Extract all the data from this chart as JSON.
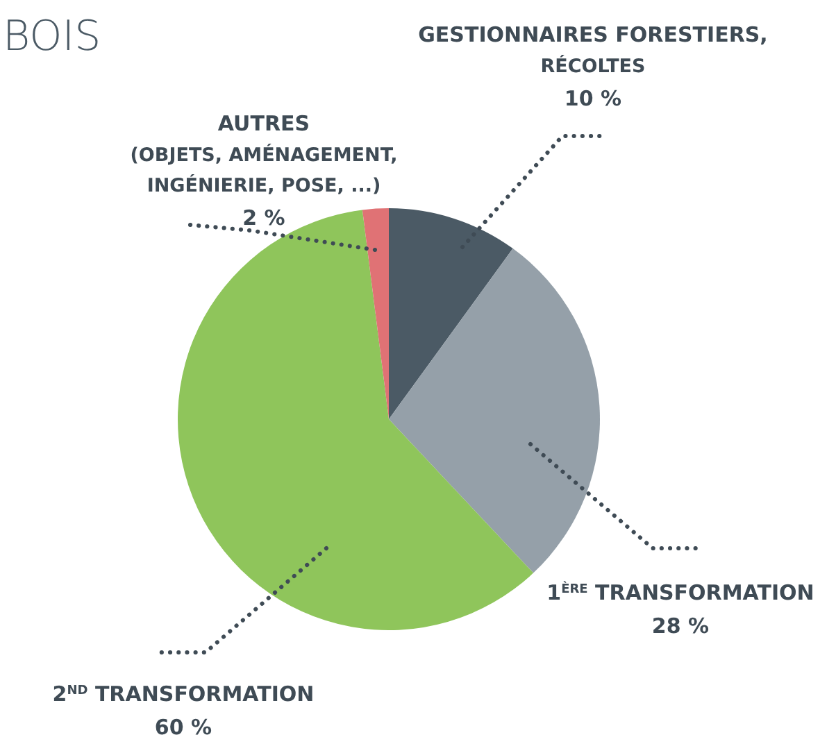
{
  "chart_data": {
    "type": "pie",
    "title": "BOIS",
    "categories": [
      "GESTIONNAIRES FORESTIERS,\nRÉCOLTES",
      "1$^{ÈRE}$ TRANSFORMATION",
      "2$^{ND}$ TRANSFORMATION",
      "AUTRES\n(OBJETS, AMÉNAGEMENT,\nINGÉNIERIE, POSE, ...)"
    ],
    "values": [
      10,
      28,
      60,
      2
    ],
    "value_labels": [
      "10 %",
      "28 %",
      "60 %",
      "2 %"
    ],
    "colors": [
      "#4b5a65",
      "#95a0a9",
      "#8fc55b",
      "#e07275"
    ]
  }
}
